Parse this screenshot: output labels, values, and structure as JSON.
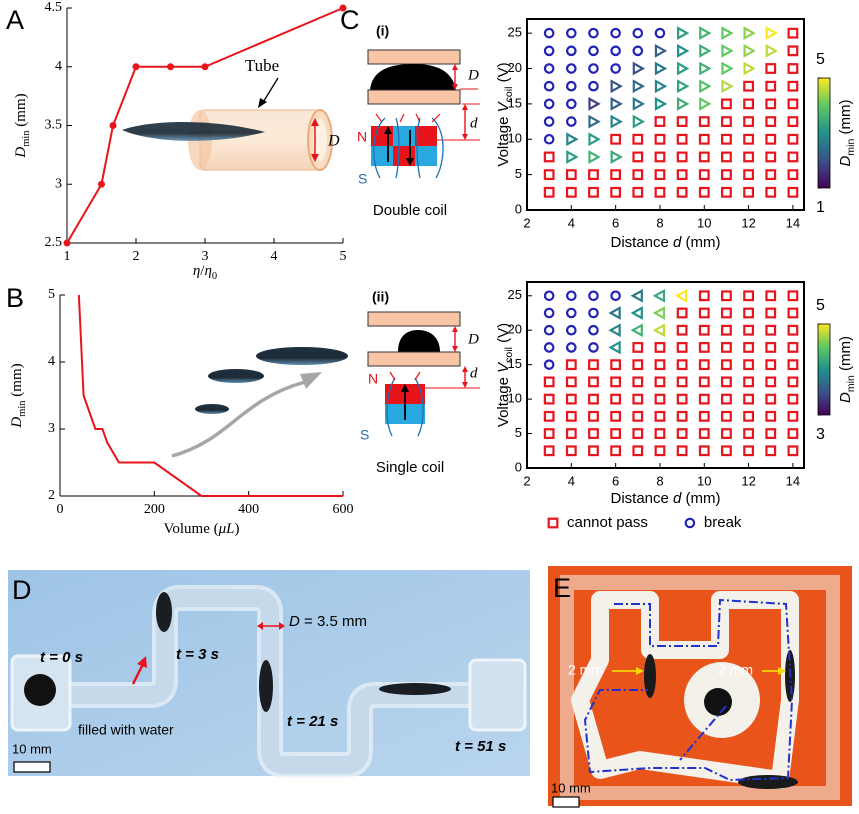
{
  "panels": {
    "a": "A",
    "b": "B",
    "c": "C",
    "d": "D",
    "e": "E"
  },
  "chart_data": [
    {
      "type": "line",
      "x": [
        1,
        1.5,
        1.667,
        2,
        2.5,
        3,
        5
      ],
      "series": [
        {
          "color": "#e8141c",
          "markers": true,
          "values": [
            2.5,
            3,
            3.5,
            4,
            4,
            4,
            4.5
          ]
        }
      ],
      "xlim": [
        1,
        5
      ],
      "ylim": [
        2.5,
        4.5
      ],
      "xticks": [
        1,
        2,
        3,
        4,
        5
      ],
      "yticks": [
        2.5,
        3,
        3.5,
        4,
        4.5
      ],
      "xlabel": [
        {
          "text": "η",
          "style": "italic"
        },
        {
          "text": "/"
        },
        {
          "text": "η",
          "style": "italic"
        },
        {
          "text": "0",
          "style": "sub"
        }
      ],
      "ylabel": [
        {
          "text": "D",
          "style": "italic"
        },
        {
          "text": "min",
          "style": "sub"
        },
        {
          "text": " (mm)"
        }
      ],
      "annotations": {
        "tube": "Tube",
        "diameter": "D"
      }
    },
    {
      "type": "line",
      "x": [
        40,
        50,
        75,
        90,
        100,
        125,
        200,
        300,
        400,
        600
      ],
      "series": [
        {
          "color": "#e8141c",
          "markers": false,
          "values": [
            5,
            3.5,
            3,
            3,
            2.8,
            2.5,
            2.5,
            2,
            2,
            2
          ]
        }
      ],
      "xlim": [
        0,
        600
      ],
      "ylim": [
        2,
        5
      ],
      "xticks": [
        0,
        200,
        400,
        600
      ],
      "yticks": [
        2,
        3,
        4,
        5
      ],
      "xlabel": [
        {
          "text": "Volume ("
        },
        {
          "text": "μL",
          "style": "italic"
        },
        {
          "text": ")"
        }
      ],
      "ylabel": [
        {
          "text": "D",
          "style": "italic"
        },
        {
          "text": "min",
          "style": "sub"
        },
        {
          "text": " (mm)"
        }
      ]
    },
    {
      "type": "scatter",
      "xlim": [
        2,
        14.5
      ],
      "ylim": [
        0,
        27
      ],
      "xticks": [
        2,
        4,
        6,
        8,
        10,
        12,
        14
      ],
      "yticks": [
        0,
        5,
        10,
        15,
        20,
        25
      ],
      "xlabel": [
        {
          "text": "Distance "
        },
        {
          "text": "d",
          "style": "italic"
        },
        {
          "text": " (mm)"
        }
      ],
      "ylabel": [
        {
          "text": "Voltage "
        },
        {
          "text": "V",
          "style": "italic"
        },
        {
          "text": "coil",
          "style": "sub"
        },
        {
          "text": " (V)"
        }
      ],
      "colormap": "viridis",
      "colorbar": {
        "lim": [
          1,
          5
        ],
        "ticks": [
          1,
          5
        ],
        "label": [
          {
            "text": "D",
            "style": "italic"
          },
          {
            "text": "min",
            "style": "sub"
          },
          {
            "text": " (mm)"
          }
        ]
      },
      "series": [
        {
          "marker": "square",
          "color": "#e8141c",
          "x": [
            14,
            14,
            13,
            14,
            12,
            13,
            14,
            11,
            12,
            13,
            14,
            8,
            9,
            10,
            11,
            12,
            13,
            14,
            6,
            7,
            8,
            9,
            10,
            11,
            12,
            13,
            14,
            3,
            7,
            8,
            9,
            10,
            11,
            12,
            13,
            14,
            3,
            4,
            5,
            6,
            7,
            8,
            9,
            10,
            11,
            12,
            13,
            14,
            3,
            4,
            5,
            6,
            7,
            8,
            9,
            10,
            11,
            12,
            13,
            14
          ],
          "y": [
            25,
            22.5,
            20,
            20,
            17.5,
            17.5,
            17.5,
            15,
            15,
            15,
            15,
            12.5,
            12.5,
            12.5,
            12.5,
            12.5,
            12.5,
            12.5,
            10,
            10,
            10,
            10,
            10,
            10,
            10,
            10,
            10,
            7.5,
            7.5,
            7.5,
            7.5,
            7.5,
            7.5,
            7.5,
            7.5,
            7.5,
            5,
            5,
            5,
            5,
            5,
            5,
            5,
            5,
            5,
            5,
            5,
            5,
            2.5,
            2.5,
            2.5,
            2.5,
            2.5,
            2.5,
            2.5,
            2.5,
            2.5,
            2.5,
            2.5,
            2.5
          ]
        },
        {
          "marker": "circle",
          "color": "#2222b4",
          "x": [
            3,
            4,
            5,
            6,
            7,
            8,
            3,
            4,
            5,
            6,
            7,
            3,
            4,
            5,
            6,
            3,
            4,
            5,
            3,
            4,
            3,
            4,
            3
          ],
          "y": [
            25,
            25,
            25,
            25,
            25,
            25,
            22.5,
            22.5,
            22.5,
            22.5,
            22.5,
            20,
            20,
            20,
            20,
            17.5,
            17.5,
            17.5,
            15,
            15,
            12.5,
            12.5,
            10
          ]
        },
        {
          "marker": "triangle-right",
          "x": [
            9,
            10,
            11,
            12,
            13,
            8,
            9,
            10,
            11,
            12,
            13,
            7,
            8,
            9,
            10,
            11,
            12,
            6,
            7,
            8,
            9,
            10,
            11,
            5,
            6,
            7,
            8,
            9,
            10,
            5,
            6,
            7,
            4,
            5,
            4,
            5,
            6
          ],
          "y": [
            25,
            25,
            25,
            25,
            25,
            22.5,
            22.5,
            22.5,
            22.5,
            22.5,
            22.5,
            20,
            20,
            20,
            20,
            20,
            20,
            17.5,
            17.5,
            17.5,
            17.5,
            17.5,
            17.5,
            15,
            15,
            15,
            15,
            15,
            15,
            12.5,
            12.5,
            12.5,
            10,
            10,
            7.5,
            7.5,
            7.5
          ],
          "values": [
            3.2,
            3.6,
            4,
            4.3,
            5,
            2.2,
            3,
            3.5,
            4,
            4.3,
            4.6,
            2,
            2.6,
            3.2,
            3.6,
            4,
            4.6,
            2,
            2.4,
            2.8,
            3.3,
            3.8,
            4.5,
            1.8,
            2.2,
            2.6,
            3,
            3.5,
            4,
            2.4,
            2.8,
            3.2,
            2.8,
            3.2,
            3.2,
            3.6,
            3.4
          ]
        }
      ]
    },
    {
      "type": "scatter",
      "xlim": [
        2,
        14.5
      ],
      "ylim": [
        0,
        27
      ],
      "xticks": [
        2,
        4,
        6,
        8,
        10,
        12,
        14
      ],
      "yticks": [
        0,
        5,
        10,
        15,
        20,
        25
      ],
      "xlabel": [
        {
          "text": "Distance "
        },
        {
          "text": "d",
          "style": "italic"
        },
        {
          "text": " (mm)"
        }
      ],
      "ylabel": [
        {
          "text": "Voltage "
        },
        {
          "text": "V",
          "style": "italic"
        },
        {
          "text": "coil",
          "style": "sub"
        },
        {
          "text": " (V)"
        }
      ],
      "colormap": "viridis",
      "colorbar": {
        "lim": [
          3,
          5
        ],
        "ticks": [
          3,
          5
        ],
        "label": [
          {
            "text": "D",
            "style": "italic"
          },
          {
            "text": "min",
            "style": "sub"
          },
          {
            "text": " (mm)"
          }
        ]
      },
      "legend": "below",
      "series": [
        {
          "name": "cannot pass",
          "marker": "square",
          "color": "#e8141c",
          "x": [
            10,
            11,
            12,
            13,
            14,
            9,
            10,
            11,
            12,
            13,
            14,
            9,
            10,
            11,
            12,
            13,
            14,
            7,
            8,
            9,
            10,
            11,
            12,
            13,
            14,
            4,
            5,
            6,
            7,
            8,
            9,
            10,
            11,
            12,
            13,
            14,
            3,
            4,
            5,
            6,
            7,
            8,
            9,
            10,
            11,
            12,
            13,
            14,
            3,
            4,
            5,
            6,
            7,
            8,
            9,
            10,
            11,
            12,
            13,
            14,
            3,
            4,
            5,
            6,
            7,
            8,
            9,
            10,
            11,
            12,
            13,
            14,
            3,
            4,
            5,
            6,
            7,
            8,
            9,
            10,
            11,
            12,
            13,
            14,
            3,
            4,
            5,
            6,
            7,
            8,
            9,
            10,
            11,
            12,
            13,
            14
          ],
          "y": [
            25,
            25,
            25,
            25,
            25,
            22.5,
            22.5,
            22.5,
            22.5,
            22.5,
            22.5,
            20,
            20,
            20,
            20,
            20,
            20,
            17.5,
            17.5,
            17.5,
            17.5,
            17.5,
            17.5,
            17.5,
            17.5,
            15,
            15,
            15,
            15,
            15,
            15,
            15,
            15,
            15,
            15,
            15,
            12.5,
            12.5,
            12.5,
            12.5,
            12.5,
            12.5,
            12.5,
            12.5,
            12.5,
            12.5,
            12.5,
            12.5,
            10,
            10,
            10,
            10,
            10,
            10,
            10,
            10,
            10,
            10,
            10,
            10,
            7.5,
            7.5,
            7.5,
            7.5,
            7.5,
            7.5,
            7.5,
            7.5,
            7.5,
            7.5,
            7.5,
            7.5,
            5,
            5,
            5,
            5,
            5,
            5,
            5,
            5,
            5,
            5,
            5,
            5,
            2.5,
            2.5,
            2.5,
            2.5,
            2.5,
            2.5,
            2.5,
            2.5,
            2.5,
            2.5,
            2.5,
            2.5
          ]
        },
        {
          "name": "break",
          "marker": "circle",
          "color": "#2222b4",
          "x": [
            3,
            4,
            5,
            6,
            3,
            4,
            5,
            3,
            4,
            5,
            3,
            4,
            5,
            3
          ],
          "y": [
            25,
            25,
            25,
            25,
            22.5,
            22.5,
            22.5,
            20,
            20,
            20,
            17.5,
            17.5,
            17.5,
            15
          ]
        },
        {
          "marker": "triangle-left",
          "x": [
            7,
            8,
            9,
            6,
            7,
            8,
            6,
            7,
            8,
            6
          ],
          "y": [
            25,
            25,
            25,
            22.5,
            22.5,
            22.5,
            20,
            20,
            20,
            17.5
          ],
          "values": [
            3.8,
            4.2,
            5,
            3.8,
            4,
            4.6,
            3.9,
            4.3,
            4.8,
            4
          ]
        }
      ]
    }
  ],
  "diagrams": {
    "i": {
      "label": "(i)",
      "gap": "D",
      "distance": "d",
      "north": "N",
      "south": "S",
      "caption": "Double coil"
    },
    "ii": {
      "label": "(ii)",
      "gap": "D",
      "distance": "d",
      "north": "N",
      "south": "S",
      "caption": "Single coil"
    }
  },
  "photo_d": {
    "times": [
      "t = 0 s",
      "t = 3 s",
      "t = 21 s",
      "t = 51 s"
    ],
    "diameter": [
      {
        "text": "D",
        "style": "italic"
      },
      {
        "text": " = 3.5 mm"
      }
    ],
    "note": "filled with water",
    "scale": "10 mm"
  },
  "photo_e": {
    "gaps": [
      "2 mm",
      "2 mm"
    ],
    "scale": "10 mm"
  }
}
